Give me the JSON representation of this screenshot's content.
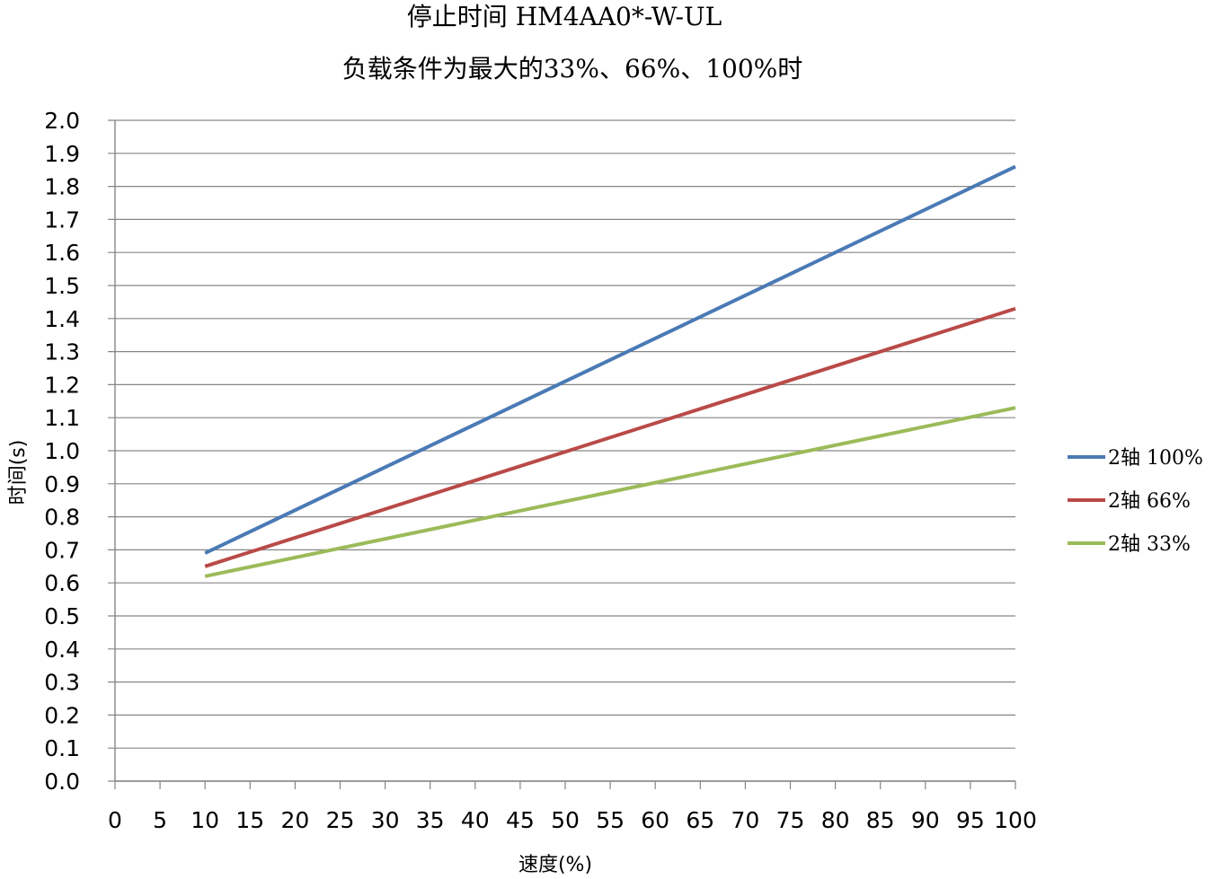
{
  "chart_data": {
    "type": "line",
    "title": "停止时间 HM4AA0*-W-UL",
    "subtitle": "负载条件为最大的33%、66%、100%时",
    "xlabel": "速度(%)",
    "ylabel": "时间(s)",
    "x_ticks": [
      "0",
      "5",
      "10",
      "15",
      "20",
      "25",
      "30",
      "35",
      "40",
      "45",
      "50",
      "55",
      "60",
      "65",
      "70",
      "75",
      "80",
      "85",
      "90",
      "95",
      "100"
    ],
    "y_ticks": [
      "0.0",
      "0.1",
      "0.2",
      "0.3",
      "0.4",
      "0.5",
      "0.6",
      "0.7",
      "0.8",
      "0.9",
      "1.0",
      "1.1",
      "1.2",
      "1.3",
      "1.4",
      "1.5",
      "1.6",
      "1.7",
      "1.8",
      "1.9",
      "2.0"
    ],
    "xlim": [
      0,
      100
    ],
    "ylim": [
      0,
      2.0
    ],
    "grid": "horizontal",
    "legend_position": "right",
    "series": [
      {
        "name": "2轴 100%",
        "color": "#4a7ab5",
        "x": [
          10,
          100
        ],
        "y": [
          0.69,
          1.86
        ]
      },
      {
        "name": "2轴 66%",
        "color": "#b94a48",
        "x": [
          10,
          100
        ],
        "y": [
          0.65,
          1.43
        ]
      },
      {
        "name": "2轴 33%",
        "color": "#9bbb59",
        "x": [
          10,
          100
        ],
        "y": [
          0.62,
          1.13
        ]
      }
    ]
  }
}
